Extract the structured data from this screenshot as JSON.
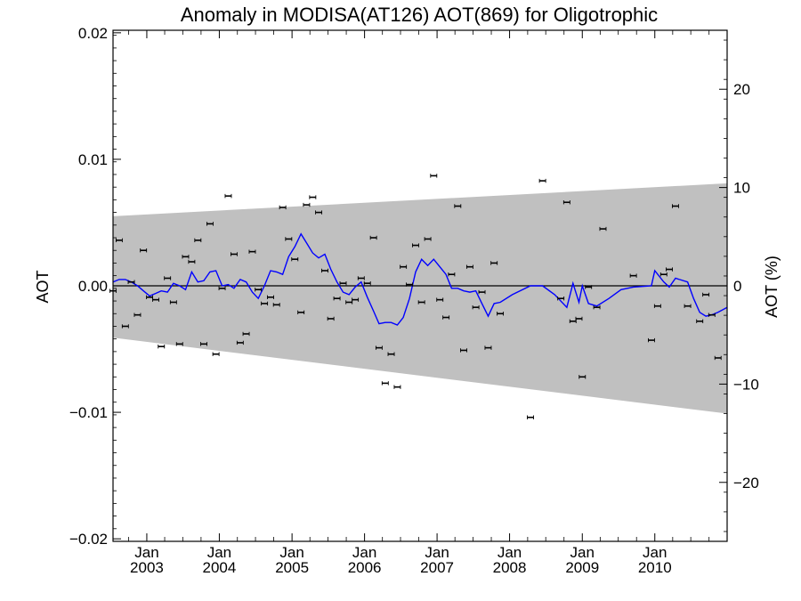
{
  "chart_data": {
    "type": "scatter",
    "title": "Anomaly in MODISA(AT126) AOT(869) for Oligotrophic",
    "ylabel": "AOT",
    "y2label": "AOT (%)",
    "xlim": [
      "2002-07-15",
      "2010-12-31"
    ],
    "ylim": [
      -0.0202,
      0.0202
    ],
    "y2lim": [
      -26,
      26
    ],
    "x_ticks": [
      {
        "date": "2003-01-01",
        "month": "Jan",
        "year": "2003"
      },
      {
        "date": "2004-01-01",
        "month": "Jan",
        "year": "2004"
      },
      {
        "date": "2005-01-01",
        "month": "Jan",
        "year": "2005"
      },
      {
        "date": "2006-01-01",
        "month": "Jan",
        "year": "2006"
      },
      {
        "date": "2007-01-01",
        "month": "Jan",
        "year": "2007"
      },
      {
        "date": "2008-01-01",
        "month": "Jan",
        "year": "2008"
      },
      {
        "date": "2009-01-01",
        "month": "Jan",
        "year": "2009"
      },
      {
        "date": "2010-01-01",
        "month": "Jan",
        "year": "2010"
      }
    ],
    "y_ticks": [
      {
        "value": 0.02,
        "label": "0.02"
      },
      {
        "value": 0.01,
        "label": "0.01"
      },
      {
        "value": 0.0,
        "label": "0.00"
      },
      {
        "value": -0.01,
        "label": "−0.01"
      },
      {
        "value": -0.02,
        "label": "−0.02"
      }
    ],
    "y2_ticks": [
      {
        "value": 20,
        "label": "20"
      },
      {
        "value": 10,
        "label": "10"
      },
      {
        "value": 0,
        "label": "0"
      },
      {
        "value": -10,
        "label": "−10"
      },
      {
        "value": -20,
        "label": "−20"
      }
    ],
    "band": {
      "color": "#c0c0c0",
      "upper": [
        [
          "2002-07-15",
          0.0055
        ],
        [
          "2010-12-31",
          0.0081
        ]
      ],
      "lower": [
        [
          "2002-07-15",
          -0.0041
        ],
        [
          "2010-12-31",
          -0.0101
        ]
      ]
    },
    "zero_line": 0.0,
    "points": [
      [
        "2002-07-15",
        -0.0004
      ],
      [
        "2002-08-15",
        0.0036
      ],
      [
        "2002-09-15",
        -0.0032
      ],
      [
        "2002-10-15",
        0.0003
      ],
      [
        "2002-11-15",
        -0.0023
      ],
      [
        "2002-12-15",
        0.0028
      ],
      [
        "2003-01-15",
        -0.0009
      ],
      [
        "2003-02-15",
        -0.0011
      ],
      [
        "2003-03-15",
        -0.0048
      ],
      [
        "2003-04-15",
        0.0006
      ],
      [
        "2003-05-15",
        -0.0013
      ],
      [
        "2003-06-15",
        -0.0046
      ],
      [
        "2003-07-15",
        0.0023
      ],
      [
        "2003-08-15",
        0.0019
      ],
      [
        "2003-09-15",
        0.0036
      ],
      [
        "2003-10-15",
        -0.0046
      ],
      [
        "2003-11-15",
        0.0049
      ],
      [
        "2003-12-15",
        -0.0054
      ],
      [
        "2004-01-15",
        -0.0002
      ],
      [
        "2004-02-15",
        0.0071
      ],
      [
        "2004-03-15",
        0.0025
      ],
      [
        "2004-04-15",
        -0.0045
      ],
      [
        "2004-05-15",
        -0.0038
      ],
      [
        "2004-06-15",
        0.0027
      ],
      [
        "2004-07-15",
        -0.0003
      ],
      [
        "2004-08-15",
        -0.0014
      ],
      [
        "2004-09-15",
        -0.0009
      ],
      [
        "2004-10-15",
        -0.0015
      ],
      [
        "2004-11-15",
        0.0062
      ],
      [
        "2004-12-15",
        0.0037
      ],
      [
        "2005-01-15",
        0.0021
      ],
      [
        "2005-02-15",
        -0.0021
      ],
      [
        "2005-03-15",
        0.0064
      ],
      [
        "2005-04-15",
        0.007
      ],
      [
        "2005-05-15",
        0.0058
      ],
      [
        "2005-06-15",
        0.0012
      ],
      [
        "2005-07-15",
        -0.0026
      ],
      [
        "2005-08-15",
        -0.001
      ],
      [
        "2005-09-15",
        0.0002
      ],
      [
        "2005-10-15",
        -0.0013
      ],
      [
        "2005-11-15",
        -0.0011
      ],
      [
        "2005-12-15",
        0.0006
      ],
      [
        "2006-01-15",
        0.0002
      ],
      [
        "2006-02-15",
        0.0038
      ],
      [
        "2006-03-15",
        -0.0049
      ],
      [
        "2006-04-15",
        -0.0077
      ],
      [
        "2006-05-15",
        -0.0054
      ],
      [
        "2006-06-15",
        -0.008
      ],
      [
        "2006-07-15",
        0.0015
      ],
      [
        "2006-08-15",
        0.0001
      ],
      [
        "2006-09-15",
        0.0032
      ],
      [
        "2006-10-15",
        -0.0013
      ],
      [
        "2006-11-15",
        0.0037
      ],
      [
        "2006-12-15",
        0.0087
      ],
      [
        "2007-01-15",
        -0.0011
      ],
      [
        "2007-02-15",
        -0.0025
      ],
      [
        "2007-03-15",
        0.0009
      ],
      [
        "2007-04-15",
        0.0063
      ],
      [
        "2007-05-15",
        -0.0051
      ],
      [
        "2007-06-15",
        0.0015
      ],
      [
        "2007-07-15",
        -0.0017
      ],
      [
        "2007-08-15",
        -0.0005
      ],
      [
        "2007-09-15",
        -0.0049
      ],
      [
        "2007-10-15",
        0.0018
      ],
      [
        "2007-11-15",
        -0.0022
      ],
      [
        "2008-04-15",
        -0.0104
      ],
      [
        "2008-06-15",
        0.0083
      ],
      [
        "2008-09-15",
        -0.001
      ],
      [
        "2008-10-15",
        0.0066
      ],
      [
        "2008-11-15",
        -0.0028
      ],
      [
        "2008-12-15",
        -0.0026
      ],
      [
        "2009-01-01",
        -0.0072
      ],
      [
        "2009-02-01",
        -0.0001
      ],
      [
        "2009-03-15",
        -0.0017
      ],
      [
        "2009-04-15",
        0.0045
      ],
      [
        "2009-09-15",
        0.0008
      ],
      [
        "2009-12-15",
        -0.0043
      ],
      [
        "2010-01-15",
        -0.0016
      ],
      [
        "2010-02-15",
        0.0009
      ],
      [
        "2010-03-15",
        0.0013
      ],
      [
        "2010-04-15",
        0.0063
      ],
      [
        "2010-06-15",
        -0.0016
      ],
      [
        "2010-08-15",
        -0.0028
      ],
      [
        "2010-09-15",
        -0.0007
      ],
      [
        "2010-10-15",
        -0.0023
      ],
      [
        "2010-11-15",
        -0.0057
      ]
    ],
    "line": {
      "color": "#0000ff",
      "points": [
        [
          "2002-07-15",
          0.0003
        ],
        [
          "2002-08-15",
          0.0005
        ],
        [
          "2002-09-15",
          0.0005
        ],
        [
          "2002-10-15",
          0.0003
        ],
        [
          "2002-11-15",
          0.0
        ],
        [
          "2002-12-15",
          -0.0004
        ],
        [
          "2003-01-15",
          -0.0008
        ],
        [
          "2003-02-15",
          -0.0006
        ],
        [
          "2003-03-15",
          -0.0004
        ],
        [
          "2003-04-15",
          -0.0005
        ],
        [
          "2003-05-15",
          0.0002
        ],
        [
          "2003-06-15",
          0.0
        ],
        [
          "2003-07-15",
          -0.0003
        ],
        [
          "2003-08-15",
          0.0011
        ],
        [
          "2003-09-15",
          0.0003
        ],
        [
          "2003-10-15",
          0.0004
        ],
        [
          "2003-11-15",
          0.0011
        ],
        [
          "2003-12-15",
          0.0012
        ],
        [
          "2004-01-15",
          0.0
        ],
        [
          "2004-02-15",
          0.0001
        ],
        [
          "2004-03-15",
          -0.0002
        ],
        [
          "2004-04-15",
          0.0005
        ],
        [
          "2004-05-15",
          0.0003
        ],
        [
          "2004-06-15",
          -0.0005
        ],
        [
          "2004-07-15",
          -0.001
        ],
        [
          "2004-08-15",
          0.0
        ],
        [
          "2004-09-15",
          0.0012
        ],
        [
          "2004-10-15",
          0.0011
        ],
        [
          "2004-11-15",
          0.0009
        ],
        [
          "2004-12-15",
          0.0023
        ],
        [
          "2005-01-15",
          0.0031
        ],
        [
          "2005-02-15",
          0.0041
        ],
        [
          "2005-03-15",
          0.0034
        ],
        [
          "2005-04-15",
          0.0026
        ],
        [
          "2005-05-15",
          0.0022
        ],
        [
          "2005-06-15",
          0.0025
        ],
        [
          "2005-07-15",
          0.0013
        ],
        [
          "2005-08-15",
          0.0003
        ],
        [
          "2005-09-15",
          -0.0005
        ],
        [
          "2005-10-15",
          -0.0007
        ],
        [
          "2005-11-15",
          -0.0001
        ],
        [
          "2005-12-15",
          0.0003
        ],
        [
          "2006-01-15",
          -0.0009
        ],
        [
          "2006-02-15",
          -0.002
        ],
        [
          "2006-03-15",
          -0.003
        ],
        [
          "2006-04-15",
          -0.0029
        ],
        [
          "2006-05-15",
          -0.0029
        ],
        [
          "2006-06-15",
          -0.0031
        ],
        [
          "2006-07-15",
          -0.0025
        ],
        [
          "2006-08-15",
          -0.001
        ],
        [
          "2006-09-15",
          0.0011
        ],
        [
          "2006-10-15",
          0.0021
        ],
        [
          "2006-11-15",
          0.0016
        ],
        [
          "2006-12-15",
          0.0021
        ],
        [
          "2007-01-15",
          0.0015
        ],
        [
          "2007-02-15",
          0.0009
        ],
        [
          "2007-03-15",
          -0.0002
        ],
        [
          "2007-04-15",
          -0.0002
        ],
        [
          "2007-05-15",
          -0.0004
        ],
        [
          "2007-06-15",
          -0.0005
        ],
        [
          "2007-07-15",
          -0.0004
        ],
        [
          "2007-08-15",
          -0.0014
        ],
        [
          "2007-09-15",
          -0.0024
        ],
        [
          "2007-10-15",
          -0.0014
        ],
        [
          "2007-11-15",
          -0.0013
        ],
        [
          "2008-01-15",
          -0.0007
        ],
        [
          "2008-04-15",
          0.0
        ],
        [
          "2008-06-15",
          0.0
        ],
        [
          "2008-08-15",
          -0.0007
        ],
        [
          "2008-10-15",
          -0.0017
        ],
        [
          "2008-11-15",
          0.0002
        ],
        [
          "2008-12-15",
          -0.0013
        ],
        [
          "2009-01-01",
          0.0
        ],
        [
          "2009-02-01",
          -0.0014
        ],
        [
          "2009-03-15",
          -0.0016
        ],
        [
          "2009-05-15",
          -0.001
        ],
        [
          "2009-07-15",
          -0.0003
        ],
        [
          "2009-09-15",
          -0.0001
        ],
        [
          "2009-12-15",
          0.0
        ],
        [
          "2010-01-01",
          0.0012
        ],
        [
          "2010-02-15",
          0.0003
        ],
        [
          "2010-03-15",
          -0.0001
        ],
        [
          "2010-04-15",
          0.0006
        ],
        [
          "2010-06-15",
          0.0003
        ],
        [
          "2010-07-15",
          -0.001
        ],
        [
          "2010-08-15",
          -0.0021
        ],
        [
          "2010-09-15",
          -0.0024
        ],
        [
          "2010-10-15",
          -0.0023
        ],
        [
          "2010-11-15",
          -0.0021
        ],
        [
          "2010-12-31",
          -0.0017
        ]
      ]
    }
  }
}
